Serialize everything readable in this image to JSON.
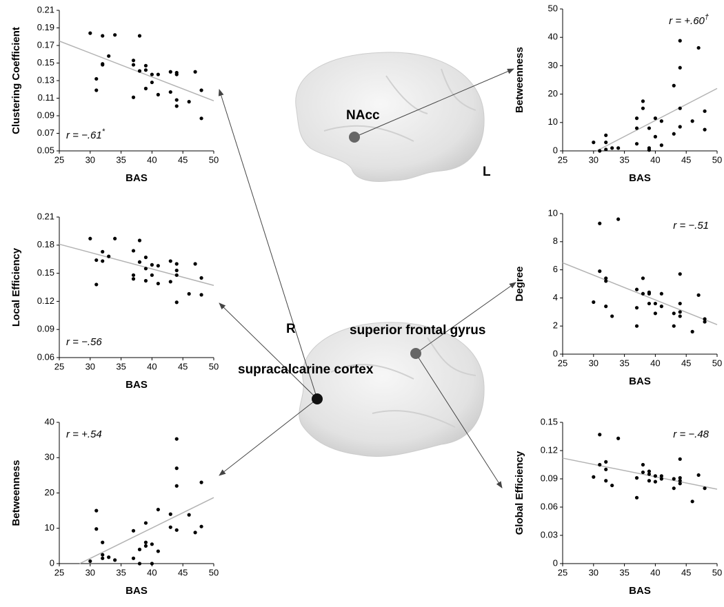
{
  "chart_data": [
    {
      "type": "scatter",
      "ylabel": "Clustering Coefficient",
      "xlabel": "BAS",
      "color": "#000000",
      "trend_color": "#b3b3b3",
      "x": [
        30,
        31,
        31,
        32,
        32,
        32,
        33,
        34,
        37,
        37,
        37,
        38,
        38,
        39,
        39,
        39,
        40,
        40,
        41,
        41,
        43,
        43,
        44,
        44,
        44,
        44,
        46,
        47,
        48,
        48
      ],
      "y": [
        0.184,
        0.132,
        0.119,
        0.181,
        0.149,
        0.148,
        0.158,
        0.182,
        0.153,
        0.148,
        0.111,
        0.181,
        0.141,
        0.142,
        0.121,
        0.147,
        0.137,
        0.128,
        0.137,
        0.114,
        0.14,
        0.117,
        0.139,
        0.137,
        0.108,
        0.101,
        0.106,
        0.14,
        0.119,
        0.087
      ],
      "trend": {
        "x": [
          25,
          50
        ],
        "y": [
          0.175,
          0.107
        ]
      },
      "annotation": "r = −.61",
      "annotation_sup": "*",
      "xlim": [
        25,
        50
      ],
      "xticks": [
        25,
        30,
        35,
        40,
        45,
        50
      ],
      "ylim": [
        0.05,
        0.21
      ],
      "yticks": [
        0.05,
        0.07,
        0.09,
        0.11,
        0.13,
        0.15,
        0.17,
        0.19,
        0.21
      ]
    },
    {
      "type": "scatter",
      "ylabel": "Local Efficiency",
      "xlabel": "BAS",
      "color": "#000000",
      "trend_color": "#b3b3b3",
      "x": [
        30,
        31,
        31,
        32,
        32,
        33,
        34,
        37,
        37,
        37,
        38,
        38,
        39,
        39,
        39,
        40,
        40,
        41,
        41,
        43,
        43,
        44,
        44,
        44,
        44,
        46,
        47,
        48,
        48
      ],
      "y": [
        0.187,
        0.164,
        0.138,
        0.173,
        0.163,
        0.168,
        0.187,
        0.174,
        0.148,
        0.144,
        0.185,
        0.162,
        0.167,
        0.155,
        0.142,
        0.159,
        0.148,
        0.158,
        0.139,
        0.163,
        0.141,
        0.16,
        0.153,
        0.148,
        0.119,
        0.128,
        0.16,
        0.145,
        0.127
      ],
      "trend": {
        "x": [
          25,
          50
        ],
        "y": [
          0.181,
          0.137
        ]
      },
      "annotation": "r = −.56",
      "xlim": [
        25,
        50
      ],
      "xticks": [
        25,
        30,
        35,
        40,
        45,
        50
      ],
      "ylim": [
        0.06,
        0.21
      ],
      "yticks": [
        0.06,
        0.09,
        0.12,
        0.15,
        0.18,
        0.21
      ]
    },
    {
      "type": "scatter",
      "ylabel": "Betweenness",
      "xlabel": "BAS",
      "color": "#000000",
      "trend_color": "#b3b3b3",
      "x": [
        30,
        31,
        31,
        32,
        32,
        32,
        33,
        34,
        37,
        37,
        38,
        38,
        39,
        39,
        39,
        40,
        40,
        41,
        41,
        43,
        43,
        44,
        44,
        44,
        44,
        46,
        47,
        48,
        48
      ],
      "y": [
        0.7,
        15,
        9.8,
        6,
        2.5,
        1.5,
        1.8,
        1,
        9.3,
        1.5,
        4,
        0,
        11.5,
        6,
        5,
        5.5,
        0,
        15.3,
        3.5,
        14,
        10.3,
        35.3,
        27,
        22,
        9.5,
        13.8,
        8.8,
        23,
        10.5
      ],
      "trend": {
        "x": [
          28.3,
          50
        ],
        "y": [
          0,
          18.7
        ]
      },
      "annotation": "r = +.54",
      "xlim": [
        25,
        50
      ],
      "xticks": [
        25,
        30,
        35,
        40,
        45,
        50
      ],
      "ylim": [
        0,
        40
      ],
      "yticks": [
        0,
        10,
        20,
        30,
        40
      ]
    },
    {
      "type": "scatter",
      "ylabel": "Betweenness",
      "xlabel": "BAS",
      "color": "#000000",
      "trend_color": "#b3b3b3",
      "x": [
        30,
        31,
        32,
        32,
        32,
        33,
        34,
        37,
        37,
        37,
        38,
        38,
        39,
        39,
        39,
        40,
        40,
        41,
        41,
        43,
        43,
        44,
        44,
        44,
        44,
        46,
        47,
        48,
        48
      ],
      "y": [
        3,
        0,
        5.5,
        3,
        0.5,
        1,
        1,
        11.5,
        8,
        2.5,
        17.5,
        15,
        8,
        1,
        0.3,
        11.5,
        5,
        10.5,
        2,
        23,
        6,
        38.8,
        29.3,
        15,
        8.5,
        10.5,
        36.3,
        14,
        7.5
      ],
      "trend": {
        "x": [
          30.5,
          50
        ],
        "y": [
          0,
          22
        ]
      },
      "annotation": "r = +.60",
      "annotation_sup": "†",
      "xlim": [
        25,
        50
      ],
      "xticks": [
        25,
        30,
        35,
        40,
        45,
        50
      ],
      "ylim": [
        0,
        50
      ],
      "yticks": [
        0,
        10,
        20,
        30,
        40,
        50
      ]
    },
    {
      "type": "scatter",
      "ylabel": "Degree",
      "xlabel": "BAS",
      "color": "#000000",
      "trend_color": "#b3b3b3",
      "x": [
        30,
        31,
        31,
        32,
        32,
        32,
        33,
        34,
        37,
        37,
        37,
        38,
        38,
        39,
        39,
        39,
        40,
        40,
        41,
        41,
        43,
        43,
        44,
        44,
        44,
        44,
        46,
        47,
        48,
        48
      ],
      "y": [
        3.7,
        9.3,
        5.9,
        5.4,
        5.2,
        3.4,
        2.7,
        9.6,
        4.6,
        3.3,
        2,
        5.4,
        4.3,
        4.4,
        3.6,
        4.3,
        3.6,
        2.9,
        4.3,
        3.4,
        2.9,
        2,
        5.7,
        3.6,
        3,
        2.7,
        1.6,
        4.2,
        2.5,
        2.3
      ],
      "trend": {
        "x": [
          25,
          50
        ],
        "y": [
          6.5,
          2.1
        ]
      },
      "annotation": "r = −.51",
      "xlim": [
        25,
        50
      ],
      "xticks": [
        25,
        30,
        35,
        40,
        45,
        50
      ],
      "ylim": [
        0,
        10
      ],
      "yticks": [
        0,
        2,
        4,
        6,
        8,
        10
      ]
    },
    {
      "type": "scatter",
      "ylabel": "Global Efficiency",
      "xlabel": "BAS",
      "color": "#000000",
      "trend_color": "#b3b3b3",
      "x": [
        30,
        31,
        31,
        32,
        32,
        32,
        33,
        34,
        37,
        37,
        38,
        38,
        39,
        39,
        39,
        40,
        40,
        41,
        41,
        43,
        43,
        44,
        44,
        44,
        44,
        46,
        47,
        48
      ],
      "y": [
        0.092,
        0.137,
        0.105,
        0.108,
        0.1,
        0.088,
        0.083,
        0.133,
        0.091,
        0.07,
        0.105,
        0.097,
        0.098,
        0.095,
        0.088,
        0.093,
        0.087,
        0.093,
        0.09,
        0.09,
        0.08,
        0.111,
        0.091,
        0.088,
        0.085,
        0.066,
        0.094,
        0.08
      ],
      "trend": {
        "x": [
          25,
          50
        ],
        "y": [
          0.112,
          0.079
        ]
      },
      "annotation": "r = −.48",
      "xlim": [
        25,
        50
      ],
      "xticks": [
        25,
        30,
        35,
        40,
        45,
        50
      ],
      "ylim": [
        0,
        0.15
      ],
      "yticks": [
        0,
        0.03,
        0.06,
        0.09,
        0.12,
        0.15
      ]
    }
  ],
  "brain_labels": {
    "nacc": "NAcc",
    "left": "L",
    "right": "R",
    "sfg": "superior frontal gyrus",
    "scc": "supracalcarine cortex"
  }
}
